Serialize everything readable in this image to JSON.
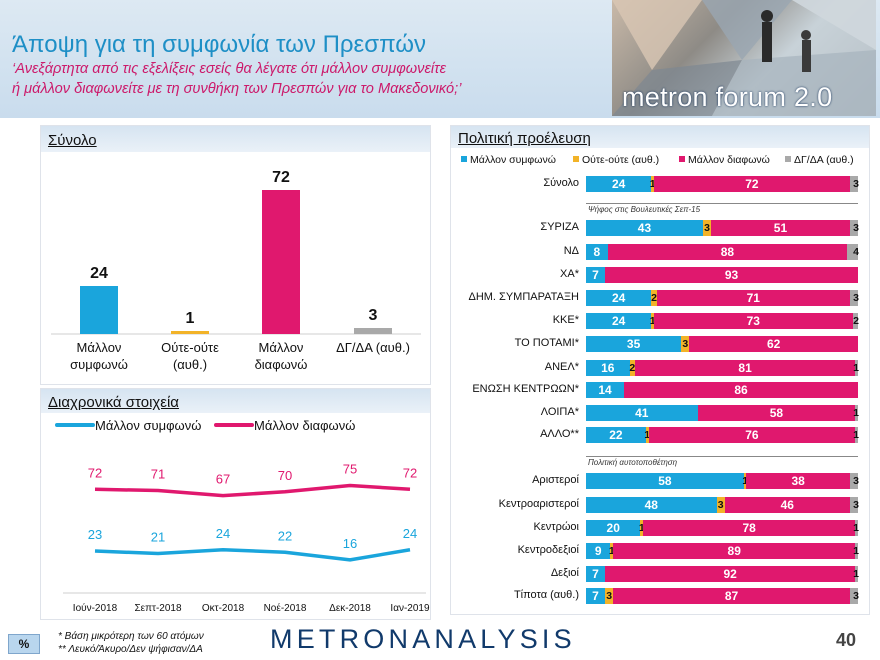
{
  "header": {
    "title": "Άποψη για τη συμφωνία των Πρεσπών",
    "subtitle_line1": "‘Ανεξάρτητα από τις εξελίξεις εσείς θα λέγατε ότι μάλλον συμφωνείτε",
    "subtitle_line2": "ή μάλλον διαφωνείτε με τη συνθήκη των Πρεσπών για το Μακεδονικό;’",
    "brand": "metron forum 2.0"
  },
  "colors": {
    "agree": "#1aa5dc",
    "neutral": "#f2b328",
    "disagree": "#e0186e",
    "dk": "#a9a9a9",
    "title_blue": "#1e8fc6",
    "subtitle_pink": "#cc1a6b"
  },
  "chart_data": [
    {
      "type": "bar",
      "title": "Σύνολο",
      "categories": [
        "Μάλλον\nσυμφωνώ",
        "Ούτε-ούτε\n(αυθ.)",
        "Μάλλον\nδιαφωνώ",
        "ΔΓ/ΔΑ (αυθ.)"
      ],
      "values": [
        24,
        1,
        72,
        3
      ],
      "colors": [
        "#1aa5dc",
        "#f2b328",
        "#e0186e",
        "#a9a9a9"
      ],
      "ylim": [
        0,
        80
      ]
    },
    {
      "type": "line",
      "title": "Διαχρονικά στοιχεία",
      "x": [
        "Ιούν-2018",
        "Σεπτ-2018",
        "Οκτ-2018",
        "Νοέ-2018",
        "Δεκ-2018",
        "Ιαν-2019"
      ],
      "series": [
        {
          "name": "Μάλλον συμφωνώ",
          "values": [
            23,
            21,
            24,
            22,
            16,
            24
          ],
          "color": "#1aa5dc"
        },
        {
          "name": "Μάλλον διαφωνώ",
          "values": [
            72,
            71,
            67,
            70,
            75,
            72
          ],
          "color": "#e0186e"
        }
      ],
      "ylim": [
        0,
        100
      ]
    },
    {
      "type": "bar",
      "stacked": true,
      "orientation": "horizontal",
      "title": "Πολιτική προέλευση",
      "legend": [
        "Μάλλον συμφωνώ",
        "Ούτε-ούτε (αυθ.)",
        "Μάλλον διαφωνώ",
        "ΔΓ/ΔΑ (αυθ.)"
      ],
      "groups": [
        {
          "note": "",
          "rows": [
            {
              "label": "Σύνολο",
              "values": [
                24,
                1,
                72,
                3
              ]
            }
          ]
        },
        {
          "note": "Ψήφος στις Βουλευτικές Σεπ-15",
          "rows": [
            {
              "label": "ΣΥΡΙΖΑ",
              "values": [
                43,
                3,
                51,
                3
              ]
            },
            {
              "label": "ΝΔ",
              "values": [
                8,
                0,
                88,
                4
              ]
            },
            {
              "label": "ΧΑ*",
              "values": [
                7,
                0,
                93,
                0
              ]
            },
            {
              "label": "ΔΗΜ. ΣΥΜΠΑΡΑΤΑΞΗ",
              "values": [
                24,
                2,
                71,
                3
              ]
            },
            {
              "label": "ΚΚΕ*",
              "values": [
                24,
                1,
                73,
                2
              ]
            },
            {
              "label": "ΤΟ ΠΟΤΑΜΙ*",
              "values": [
                35,
                3,
                62,
                0
              ]
            },
            {
              "label": "ΑΝΕΛ*",
              "values": [
                16,
                2,
                81,
                1
              ]
            },
            {
              "label": "ΕΝΩΣΗ ΚΕΝΤΡΩΩΝ*",
              "values": [
                14,
                0,
                86,
                0
              ]
            },
            {
              "label": "ΛΟΙΠΑ*",
              "values": [
                41,
                0,
                58,
                1
              ]
            },
            {
              "label": "ΑΛΛΟ**",
              "values": [
                22,
                1,
                76,
                1
              ]
            }
          ]
        },
        {
          "note": "Πολιτική αυτοτοποθέτηση",
          "rows": [
            {
              "label": "Αριστεροί",
              "values": [
                58,
                1,
                38,
                3
              ]
            },
            {
              "label": "Κεντροαριστεροί",
              "values": [
                48,
                3,
                46,
                3
              ]
            },
            {
              "label": "Κεντρώοι",
              "values": [
                20,
                1,
                78,
                1
              ]
            },
            {
              "label": "Κεντροδεξιοί",
              "values": [
                9,
                1,
                89,
                1
              ]
            },
            {
              "label": "Δεξιοί",
              "values": [
                7,
                0,
                92,
                1
              ]
            },
            {
              "label": "Τίποτα (αυθ.)",
              "values": [
                7,
                3,
                87,
                3
              ]
            }
          ]
        }
      ]
    }
  ],
  "footer": {
    "pct_badge": "%",
    "note1": "*  Βάση μικρότερη των 60 ατόμων",
    "note2": "** Λευκό/Άκυρο/Δεν ψήφισαν/ΔΑ",
    "company": "METRONANALYSIS",
    "page": "40"
  }
}
